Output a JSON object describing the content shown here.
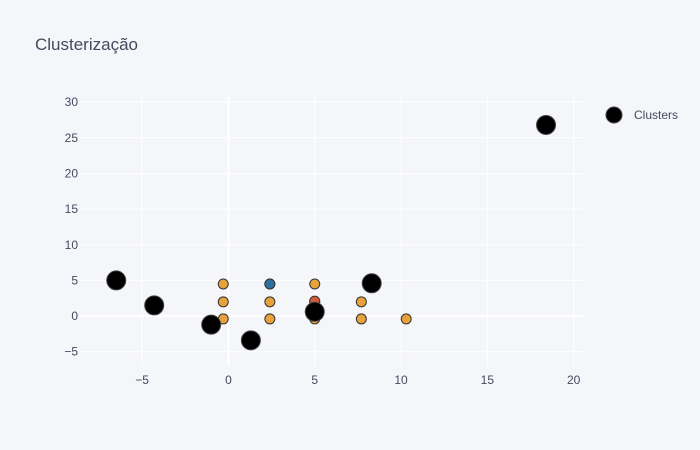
{
  "chart_data": {
    "type": "scatter",
    "title": "Clusterização",
    "xlabel": "",
    "ylabel": "",
    "xlim": [
      -8.6,
      20.6
    ],
    "ylim": [
      -7.0,
      31.0
    ],
    "x_ticks": [
      -5,
      0,
      5,
      10,
      15,
      20
    ],
    "x_tick_labels": [
      "−5",
      "0",
      "5",
      "10",
      "15",
      "20"
    ],
    "y_ticks": [
      -5,
      0,
      5,
      10,
      15,
      20,
      25,
      30
    ],
    "y_tick_labels": [
      "−5",
      "0",
      "5",
      "10",
      "15",
      "20",
      "25",
      "30"
    ],
    "grid": true,
    "legend": {
      "position": "top-right",
      "entries": [
        "Clusters"
      ]
    },
    "colors": {
      "background": "#f5f6fa",
      "grid": "#ffffff",
      "zero_line": "#ffffff",
      "text": "#444a5e",
      "orange": "#e8a23b",
      "blue": "#2e6f9e",
      "red": "#d25a3a",
      "cluster": "#000000"
    },
    "series": [
      {
        "color": "#e8a23b",
        "points": [
          {
            "x": -0.3,
            "y": 4.5
          },
          {
            "x": 2.4,
            "y": 4.5
          },
          {
            "x": 5.0,
            "y": 4.5
          },
          {
            "x": -0.3,
            "y": 2.0
          },
          {
            "x": 2.4,
            "y": 2.0
          },
          {
            "x": 5.0,
            "y": 2.0
          },
          {
            "x": 7.7,
            "y": 2.0
          },
          {
            "x": -0.3,
            "y": -0.4
          },
          {
            "x": 2.4,
            "y": -0.4
          },
          {
            "x": 5.0,
            "y": -0.4
          },
          {
            "x": 7.7,
            "y": -0.4
          },
          {
            "x": 10.3,
            "y": -0.4
          }
        ]
      },
      {
        "color": "#2e6f9e",
        "points": [
          {
            "x": 2.4,
            "y": 4.5
          }
        ]
      },
      {
        "color": "#d25a3a",
        "points": [
          {
            "x": 5.0,
            "y": 2.1
          }
        ]
      },
      {
        "name": "Clusters",
        "color": "#000000",
        "points": [
          {
            "x": -6.5,
            "y": 5.0
          },
          {
            "x": -4.3,
            "y": 1.5
          },
          {
            "x": -1.0,
            "y": -1.2
          },
          {
            "x": 1.3,
            "y": -3.4
          },
          {
            "x": 5.0,
            "y": 0.6
          },
          {
            "x": 8.3,
            "y": 4.6
          },
          {
            "x": 18.4,
            "y": 26.8
          }
        ]
      }
    ]
  }
}
